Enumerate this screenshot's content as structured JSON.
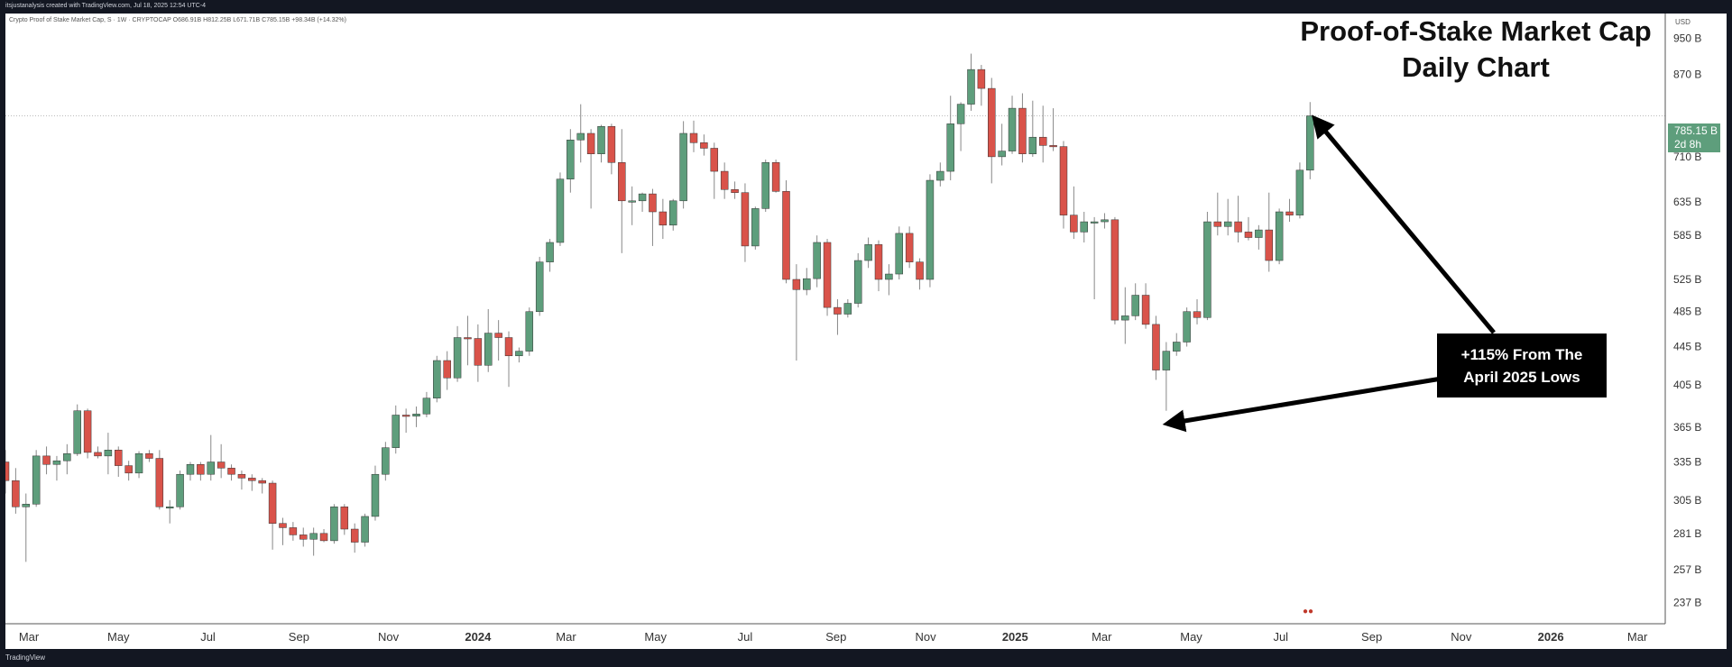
{
  "header": {
    "caption": "itsjustanalysis created with TradingView.com, Jul 18, 2025 12:54 UTC-4"
  },
  "symbol_info": "Crypto Proof of Stake Market Cap, S · 1W · CRYPTOCAP  O686.91B  H812.25B  L671.71B  C785.15B  +98.34B (+14.32%)",
  "currency": "USD",
  "current_price": {
    "value": "785.15 B",
    "countdown": "2d 8h"
  },
  "title_lines": [
    "Proof-of-Stake Market Cap",
    "Daily Chart"
  ],
  "annotation": {
    "lines": [
      "+115% From The",
      "April 2025 Lows"
    ]
  },
  "footer": {
    "brand": "TradingView"
  },
  "colors": {
    "up": "#5e9e7c",
    "down": "#d9534a",
    "background": "#ffffff",
    "frame": "#131722"
  },
  "chart_data": {
    "type": "candlestick",
    "title": "Proof-of-Stake Market Cap Daily Chart",
    "y_unit": "B USD",
    "y_scale": "log",
    "ylim": [
      225,
      1010
    ],
    "y_ticks": [
      {
        "value": 237,
        "label": "237 B"
      },
      {
        "value": 257,
        "label": "257 B"
      },
      {
        "value": 281,
        "label": "281 B"
      },
      {
        "value": 305,
        "label": "305 B"
      },
      {
        "value": 335,
        "label": "335 B"
      },
      {
        "value": 365,
        "label": "365 B"
      },
      {
        "value": 405,
        "label": "405 B"
      },
      {
        "value": 445,
        "label": "445 B"
      },
      {
        "value": 485,
        "label": "485 B"
      },
      {
        "value": 525,
        "label": "525 B"
      },
      {
        "value": 585,
        "label": "585 B"
      },
      {
        "value": 635,
        "label": "635 B"
      },
      {
        "value": 710,
        "label": "710 B"
      },
      {
        "value": 870,
        "label": "870 B"
      },
      {
        "value": 950,
        "label": "950 B"
      }
    ],
    "x_range": [
      "2023-02-13",
      "2026-03-20"
    ],
    "x_ticks": [
      {
        "date": "2023-03-01",
        "label": "Mar",
        "bold": false
      },
      {
        "date": "2023-05-01",
        "label": "May",
        "bold": false
      },
      {
        "date": "2023-07-01",
        "label": "Jul",
        "bold": false
      },
      {
        "date": "2023-09-01",
        "label": "Sep",
        "bold": false
      },
      {
        "date": "2023-11-01",
        "label": "Nov",
        "bold": false
      },
      {
        "date": "2024-01-01",
        "label": "2024",
        "bold": true
      },
      {
        "date": "2024-03-01",
        "label": "Mar",
        "bold": false
      },
      {
        "date": "2024-05-01",
        "label": "May",
        "bold": false
      },
      {
        "date": "2024-07-01",
        "label": "Jul",
        "bold": false
      },
      {
        "date": "2024-09-01",
        "label": "Sep",
        "bold": false
      },
      {
        "date": "2024-11-01",
        "label": "Nov",
        "bold": false
      },
      {
        "date": "2025-01-01",
        "label": "2025",
        "bold": true
      },
      {
        "date": "2025-03-01",
        "label": "Mar",
        "bold": false
      },
      {
        "date": "2025-05-01",
        "label": "May",
        "bold": false
      },
      {
        "date": "2025-07-01",
        "label": "Jul",
        "bold": false
      },
      {
        "date": "2025-09-01",
        "label": "Sep",
        "bold": false
      },
      {
        "date": "2025-11-01",
        "label": "Nov",
        "bold": false
      },
      {
        "date": "2026-01-01",
        "label": "2026",
        "bold": true
      },
      {
        "date": "2026-03-01",
        "label": "Mar",
        "bold": false
      }
    ],
    "current_price": 785.15,
    "candles": [
      {
        "date": "2023-02-13",
        "o": 335,
        "h": 345,
        "l": 310,
        "c": 320
      },
      {
        "date": "2023-02-20",
        "o": 320,
        "h": 330,
        "l": 295,
        "c": 300
      },
      {
        "date": "2023-02-27",
        "o": 300,
        "h": 310,
        "l": 262,
        "c": 302
      },
      {
        "date": "2023-03-06",
        "o": 302,
        "h": 345,
        "l": 300,
        "c": 340
      },
      {
        "date": "2023-03-13",
        "o": 340,
        "h": 348,
        "l": 325,
        "c": 333
      },
      {
        "date": "2023-03-20",
        "o": 333,
        "h": 340,
        "l": 320,
        "c": 336
      },
      {
        "date": "2023-03-27",
        "o": 336,
        "h": 350,
        "l": 325,
        "c": 342
      },
      {
        "date": "2023-04-03",
        "o": 342,
        "h": 386,
        "l": 340,
        "c": 380
      },
      {
        "date": "2023-04-10",
        "o": 380,
        "h": 382,
        "l": 338,
        "c": 343
      },
      {
        "date": "2023-04-17",
        "o": 343,
        "h": 348,
        "l": 338,
        "c": 340
      },
      {
        "date": "2023-04-24",
        "o": 340,
        "h": 360,
        "l": 325,
        "c": 345
      },
      {
        "date": "2023-05-01",
        "o": 345,
        "h": 348,
        "l": 323,
        "c": 332
      },
      {
        "date": "2023-05-08",
        "o": 332,
        "h": 336,
        "l": 320,
        "c": 326
      },
      {
        "date": "2023-05-15",
        "o": 326,
        "h": 344,
        "l": 322,
        "c": 342
      },
      {
        "date": "2023-05-22",
        "o": 342,
        "h": 345,
        "l": 335,
        "c": 338
      },
      {
        "date": "2023-05-29",
        "o": 338,
        "h": 345,
        "l": 298,
        "c": 300
      },
      {
        "date": "2023-06-05",
        "o": 300,
        "h": 305,
        "l": 288,
        "c": 300
      },
      {
        "date": "2023-06-12",
        "o": 300,
        "h": 328,
        "l": 298,
        "c": 325
      },
      {
        "date": "2023-06-19",
        "o": 325,
        "h": 335,
        "l": 320,
        "c": 333
      },
      {
        "date": "2023-06-26",
        "o": 333,
        "h": 335,
        "l": 320,
        "c": 325
      },
      {
        "date": "2023-07-03",
        "o": 325,
        "h": 358,
        "l": 320,
        "c": 335
      },
      {
        "date": "2023-07-10",
        "o": 335,
        "h": 350,
        "l": 322,
        "c": 330
      },
      {
        "date": "2023-07-17",
        "o": 330,
        "h": 333,
        "l": 320,
        "c": 325
      },
      {
        "date": "2023-07-24",
        "o": 325,
        "h": 328,
        "l": 313,
        "c": 322
      },
      {
        "date": "2023-07-31",
        "o": 322,
        "h": 325,
        "l": 312,
        "c": 320
      },
      {
        "date": "2023-08-07",
        "o": 320,
        "h": 322,
        "l": 310,
        "c": 318
      },
      {
        "date": "2023-08-14",
        "o": 318,
        "h": 320,
        "l": 270,
        "c": 288
      },
      {
        "date": "2023-08-21",
        "o": 288,
        "h": 292,
        "l": 273,
        "c": 285
      },
      {
        "date": "2023-08-28",
        "o": 285,
        "h": 289,
        "l": 276,
        "c": 280
      },
      {
        "date": "2023-09-04",
        "o": 280,
        "h": 285,
        "l": 272,
        "c": 277
      },
      {
        "date": "2023-09-11",
        "o": 277,
        "h": 285,
        "l": 266,
        "c": 281
      },
      {
        "date": "2023-09-18",
        "o": 281,
        "h": 284,
        "l": 275,
        "c": 276
      },
      {
        "date": "2023-09-25",
        "o": 276,
        "h": 302,
        "l": 274,
        "c": 300
      },
      {
        "date": "2023-10-02",
        "o": 300,
        "h": 302,
        "l": 280,
        "c": 284
      },
      {
        "date": "2023-10-09",
        "o": 284,
        "h": 288,
        "l": 268,
        "c": 275
      },
      {
        "date": "2023-10-16",
        "o": 275,
        "h": 295,
        "l": 272,
        "c": 293
      },
      {
        "date": "2023-10-23",
        "o": 293,
        "h": 332,
        "l": 290,
        "c": 325
      },
      {
        "date": "2023-10-30",
        "o": 325,
        "h": 352,
        "l": 320,
        "c": 347
      },
      {
        "date": "2023-11-06",
        "o": 347,
        "h": 385,
        "l": 342,
        "c": 376
      },
      {
        "date": "2023-11-13",
        "o": 376,
        "h": 382,
        "l": 360,
        "c": 375
      },
      {
        "date": "2023-11-20",
        "o": 375,
        "h": 384,
        "l": 365,
        "c": 377
      },
      {
        "date": "2023-11-27",
        "o": 377,
        "h": 398,
        "l": 374,
        "c": 392
      },
      {
        "date": "2023-12-04",
        "o": 392,
        "h": 435,
        "l": 388,
        "c": 430
      },
      {
        "date": "2023-12-11",
        "o": 430,
        "h": 440,
        "l": 400,
        "c": 412
      },
      {
        "date": "2023-12-18",
        "o": 412,
        "h": 468,
        "l": 408,
        "c": 455
      },
      {
        "date": "2023-12-25",
        "o": 455,
        "h": 480,
        "l": 425,
        "c": 454
      },
      {
        "date": "2024-01-01",
        "o": 454,
        "h": 470,
        "l": 408,
        "c": 425
      },
      {
        "date": "2024-01-08",
        "o": 425,
        "h": 488,
        "l": 418,
        "c": 460
      },
      {
        "date": "2024-01-15",
        "o": 460,
        "h": 475,
        "l": 430,
        "c": 455
      },
      {
        "date": "2024-01-22",
        "o": 455,
        "h": 462,
        "l": 403,
        "c": 435
      },
      {
        "date": "2024-01-29",
        "o": 435,
        "h": 444,
        "l": 428,
        "c": 440
      },
      {
        "date": "2024-02-05",
        "o": 440,
        "h": 490,
        "l": 435,
        "c": 485
      },
      {
        "date": "2024-02-12",
        "o": 485,
        "h": 555,
        "l": 480,
        "c": 548
      },
      {
        "date": "2024-02-19",
        "o": 548,
        "h": 580,
        "l": 535,
        "c": 575
      },
      {
        "date": "2024-02-26",
        "o": 575,
        "h": 683,
        "l": 570,
        "c": 672
      },
      {
        "date": "2024-03-04",
        "o": 672,
        "h": 760,
        "l": 650,
        "c": 740
      },
      {
        "date": "2024-03-11",
        "o": 740,
        "h": 808,
        "l": 700,
        "c": 752
      },
      {
        "date": "2024-03-18",
        "o": 752,
        "h": 760,
        "l": 625,
        "c": 715
      },
      {
        "date": "2024-03-25",
        "o": 715,
        "h": 768,
        "l": 700,
        "c": 765
      },
      {
        "date": "2024-04-01",
        "o": 765,
        "h": 770,
        "l": 680,
        "c": 700
      },
      {
        "date": "2024-04-08",
        "o": 700,
        "h": 760,
        "l": 560,
        "c": 637
      },
      {
        "date": "2024-04-15",
        "o": 637,
        "h": 660,
        "l": 600,
        "c": 637
      },
      {
        "date": "2024-04-22",
        "o": 637,
        "h": 650,
        "l": 620,
        "c": 648
      },
      {
        "date": "2024-04-29",
        "o": 648,
        "h": 656,
        "l": 570,
        "c": 620
      },
      {
        "date": "2024-05-06",
        "o": 620,
        "h": 640,
        "l": 580,
        "c": 600
      },
      {
        "date": "2024-05-13",
        "o": 600,
        "h": 640,
        "l": 592,
        "c": 637
      },
      {
        "date": "2024-05-20",
        "o": 637,
        "h": 775,
        "l": 625,
        "c": 752
      },
      {
        "date": "2024-05-27",
        "o": 752,
        "h": 776,
        "l": 718,
        "c": 735
      },
      {
        "date": "2024-06-03",
        "o": 735,
        "h": 750,
        "l": 712,
        "c": 725
      },
      {
        "date": "2024-06-10",
        "o": 725,
        "h": 735,
        "l": 640,
        "c": 685
      },
      {
        "date": "2024-06-17",
        "o": 685,
        "h": 700,
        "l": 640,
        "c": 655
      },
      {
        "date": "2024-06-24",
        "o": 655,
        "h": 668,
        "l": 640,
        "c": 650
      },
      {
        "date": "2024-07-01",
        "o": 650,
        "h": 665,
        "l": 548,
        "c": 570
      },
      {
        "date": "2024-07-08",
        "o": 570,
        "h": 628,
        "l": 565,
        "c": 625
      },
      {
        "date": "2024-07-15",
        "o": 625,
        "h": 705,
        "l": 620,
        "c": 700
      },
      {
        "date": "2024-07-22",
        "o": 700,
        "h": 705,
        "l": 650,
        "c": 652
      },
      {
        "date": "2024-07-29",
        "o": 652,
        "h": 670,
        "l": 520,
        "c": 525
      },
      {
        "date": "2024-08-05",
        "o": 525,
        "h": 545,
        "l": 430,
        "c": 512
      },
      {
        "date": "2024-08-12",
        "o": 512,
        "h": 540,
        "l": 505,
        "c": 526
      },
      {
        "date": "2024-08-19",
        "o": 526,
        "h": 585,
        "l": 515,
        "c": 575
      },
      {
        "date": "2024-08-26",
        "o": 575,
        "h": 580,
        "l": 480,
        "c": 490
      },
      {
        "date": "2024-09-02",
        "o": 490,
        "h": 500,
        "l": 458,
        "c": 482
      },
      {
        "date": "2024-09-09",
        "o": 482,
        "h": 500,
        "l": 478,
        "c": 495
      },
      {
        "date": "2024-09-16",
        "o": 495,
        "h": 560,
        "l": 490,
        "c": 550
      },
      {
        "date": "2024-09-23",
        "o": 550,
        "h": 582,
        "l": 540,
        "c": 572
      },
      {
        "date": "2024-09-30",
        "o": 572,
        "h": 578,
        "l": 510,
        "c": 525
      },
      {
        "date": "2024-10-07",
        "o": 525,
        "h": 545,
        "l": 505,
        "c": 532
      },
      {
        "date": "2024-10-14",
        "o": 532,
        "h": 598,
        "l": 525,
        "c": 588
      },
      {
        "date": "2024-10-21",
        "o": 588,
        "h": 598,
        "l": 540,
        "c": 548
      },
      {
        "date": "2024-10-28",
        "o": 548,
        "h": 553,
        "l": 512,
        "c": 525
      },
      {
        "date": "2024-11-04",
        "o": 525,
        "h": 680,
        "l": 515,
        "c": 670
      },
      {
        "date": "2024-11-11",
        "o": 670,
        "h": 700,
        "l": 660,
        "c": 685
      },
      {
        "date": "2024-11-18",
        "o": 685,
        "h": 825,
        "l": 670,
        "c": 770
      },
      {
        "date": "2024-11-25",
        "o": 770,
        "h": 812,
        "l": 720,
        "c": 808
      },
      {
        "date": "2024-12-02",
        "o": 808,
        "h": 915,
        "l": 795,
        "c": 880
      },
      {
        "date": "2024-12-09",
        "o": 880,
        "h": 890,
        "l": 805,
        "c": 840
      },
      {
        "date": "2024-12-16",
        "o": 840,
        "h": 862,
        "l": 665,
        "c": 710
      },
      {
        "date": "2024-12-23",
        "o": 710,
        "h": 770,
        "l": 695,
        "c": 720
      },
      {
        "date": "2024-12-30",
        "o": 720,
        "h": 825,
        "l": 715,
        "c": 800
      },
      {
        "date": "2025-01-06",
        "o": 800,
        "h": 830,
        "l": 700,
        "c": 715
      },
      {
        "date": "2025-01-13",
        "o": 715,
        "h": 815,
        "l": 710,
        "c": 745
      },
      {
        "date": "2025-01-20",
        "o": 745,
        "h": 805,
        "l": 700,
        "c": 730
      },
      {
        "date": "2025-01-27",
        "o": 730,
        "h": 800,
        "l": 720,
        "c": 728
      },
      {
        "date": "2025-02-03",
        "o": 728,
        "h": 738,
        "l": 595,
        "c": 615
      },
      {
        "date": "2025-02-10",
        "o": 615,
        "h": 660,
        "l": 580,
        "c": 590
      },
      {
        "date": "2025-02-17",
        "o": 590,
        "h": 620,
        "l": 575,
        "c": 605
      },
      {
        "date": "2025-02-24",
        "o": 605,
        "h": 612,
        "l": 500,
        "c": 605
      },
      {
        "date": "2025-03-03",
        "o": 605,
        "h": 618,
        "l": 595,
        "c": 608
      },
      {
        "date": "2025-03-10",
        "o": 608,
        "h": 612,
        "l": 470,
        "c": 475
      },
      {
        "date": "2025-03-17",
        "o": 475,
        "h": 515,
        "l": 448,
        "c": 480
      },
      {
        "date": "2025-03-24",
        "o": 480,
        "h": 520,
        "l": 475,
        "c": 505
      },
      {
        "date": "2025-03-31",
        "o": 505,
        "h": 520,
        "l": 465,
        "c": 470
      },
      {
        "date": "2025-04-07",
        "o": 470,
        "h": 480,
        "l": 410,
        "c": 420
      },
      {
        "date": "2025-04-14",
        "o": 420,
        "h": 450,
        "l": 380,
        "c": 440
      },
      {
        "date": "2025-04-21",
        "o": 440,
        "h": 460,
        "l": 435,
        "c": 450
      },
      {
        "date": "2025-04-28",
        "o": 450,
        "h": 490,
        "l": 445,
        "c": 485
      },
      {
        "date": "2025-05-05",
        "o": 485,
        "h": 500,
        "l": 470,
        "c": 478
      },
      {
        "date": "2025-05-12",
        "o": 478,
        "h": 620,
        "l": 475,
        "c": 605
      },
      {
        "date": "2025-05-19",
        "o": 605,
        "h": 650,
        "l": 585,
        "c": 598
      },
      {
        "date": "2025-05-26",
        "o": 598,
        "h": 640,
        "l": 585,
        "c": 605
      },
      {
        "date": "2025-06-02",
        "o": 605,
        "h": 645,
        "l": 575,
        "c": 590
      },
      {
        "date": "2025-06-09",
        "o": 590,
        "h": 612,
        "l": 578,
        "c": 582
      },
      {
        "date": "2025-06-16",
        "o": 582,
        "h": 600,
        "l": 565,
        "c": 593
      },
      {
        "date": "2025-06-23",
        "o": 593,
        "h": 650,
        "l": 535,
        "c": 550
      },
      {
        "date": "2025-06-30",
        "o": 550,
        "h": 625,
        "l": 545,
        "c": 620
      },
      {
        "date": "2025-07-07",
        "o": 620,
        "h": 640,
        "l": 605,
        "c": 615
      },
      {
        "date": "2025-07-14",
        "o": 615,
        "h": 700,
        "l": 610,
        "c": 686.91
      },
      {
        "date": "2025-07-21",
        "o": 686.91,
        "h": 812.25,
        "l": 671.71,
        "c": 785.15
      }
    ]
  }
}
